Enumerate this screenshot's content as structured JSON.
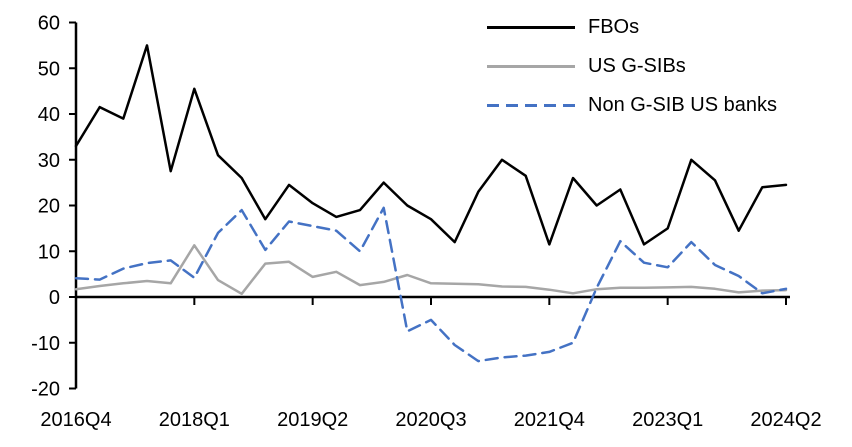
{
  "chart_data": {
    "type": "line",
    "title": "",
    "xlabel": "",
    "ylabel": "",
    "ylim": [
      -20,
      60
    ],
    "ytick_step": 10,
    "y_tick_labels": [
      "-20",
      "-10",
      "0",
      "10",
      "20",
      "30",
      "40",
      "50",
      "60"
    ],
    "xtick_every": 5,
    "x_tick_labels_shown": [
      "2016Q4",
      "2018Q1",
      "2019Q2",
      "2020Q3",
      "2021Q4",
      "2023Q1",
      "2024Q2"
    ],
    "grid": false,
    "legend_position": "top-right",
    "x": [
      "2016Q4",
      "2017Q1",
      "2017Q2",
      "2017Q3",
      "2017Q4",
      "2018Q1",
      "2018Q2",
      "2018Q3",
      "2018Q4",
      "2019Q1",
      "2019Q2",
      "2019Q3",
      "2019Q4",
      "2020Q1",
      "2020Q2",
      "2020Q3",
      "2020Q4",
      "2021Q1",
      "2021Q2",
      "2021Q3",
      "2021Q4",
      "2022Q1",
      "2022Q2",
      "2022Q3",
      "2022Q4",
      "2023Q1",
      "2023Q2",
      "2023Q3",
      "2023Q4",
      "2024Q1",
      "2024Q2"
    ],
    "series": [
      {
        "name": "FBOs",
        "color": "#000000",
        "style": "solid",
        "values": [
          33,
          41.5,
          39,
          55,
          27.5,
          45.5,
          31,
          26,
          17,
          24.5,
          20.5,
          17.5,
          19,
          25,
          20,
          17,
          12,
          23,
          30,
          26.5,
          11.5,
          26,
          20,
          23.5,
          11.5,
          15,
          30,
          25.5,
          14.5,
          24,
          24.5
        ]
      },
      {
        "name": "US G-SIBs",
        "color": "#a6a6a6",
        "style": "solid",
        "values": [
          1.7,
          2.4,
          3,
          3.5,
          3,
          11.3,
          3.7,
          0.7,
          7.3,
          7.7,
          4.4,
          5.5,
          2.6,
          3.3,
          4.8,
          3,
          2.9,
          2.8,
          2.3,
          2.2,
          1.6,
          0.8,
          1.7,
          2,
          2,
          2.1,
          2.2,
          1.8,
          1,
          1.4,
          1.5
        ]
      },
      {
        "name": "Non G-SIB US banks",
        "color": "#4472c4",
        "style": "dashed",
        "values": [
          4.1,
          3.8,
          6.2,
          7.4,
          8,
          4.2,
          14,
          19,
          10.3,
          16.5,
          15.5,
          14.5,
          10,
          19.5,
          -7.5,
          -5,
          -10.5,
          -14,
          -13.2,
          -12.8,
          -12,
          -10,
          2,
          12.2,
          7.5,
          6.5,
          12,
          7,
          4.6,
          0.8,
          1.8
        ]
      }
    ]
  }
}
